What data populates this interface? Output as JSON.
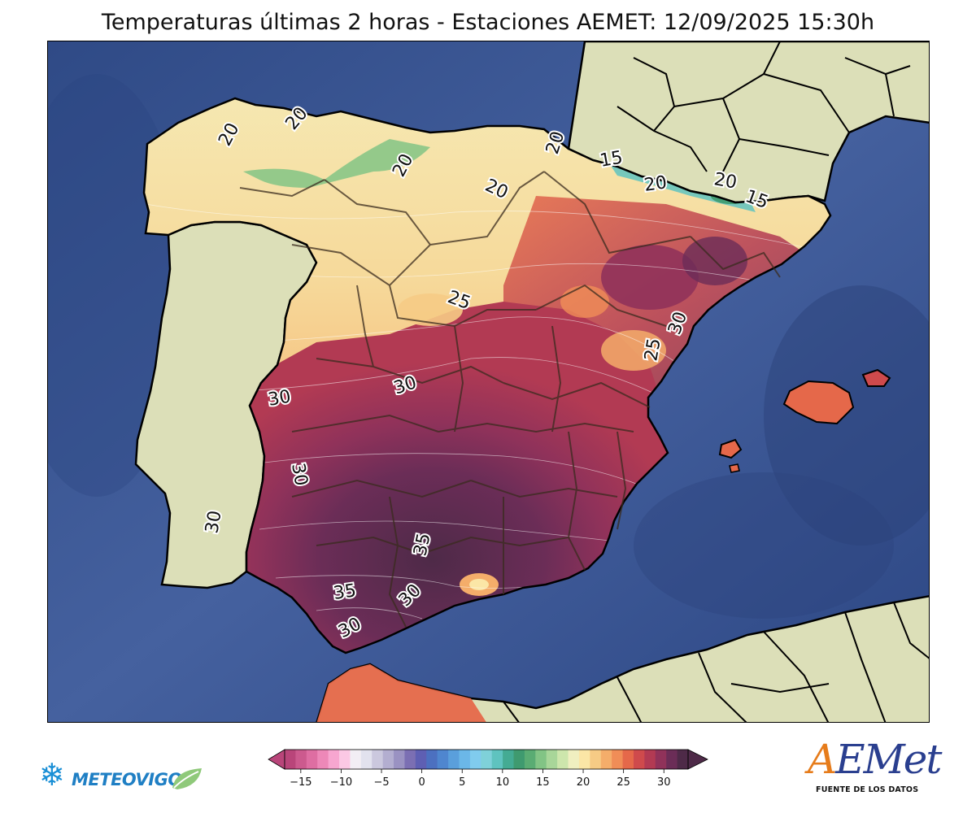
{
  "title": "Temperaturas últimas 2 horas - Estaciones AEMET: 12/09/2025 15:30h",
  "colors": {
    "sea": "#3f5a9a",
    "land_outside": "#dcdfb8",
    "portugal": "#dcdfb8",
    "border": "#000000"
  },
  "contour_labels": [
    {
      "text": "20",
      "id": "galicia-west"
    },
    {
      "text": "20",
      "id": "galicia-north"
    },
    {
      "text": "20",
      "id": "asturias"
    },
    {
      "text": "20",
      "id": "castilla-north"
    },
    {
      "text": "20",
      "id": "navarra"
    },
    {
      "text": "15",
      "id": "pyrenees-west"
    },
    {
      "text": "20",
      "id": "pyrenees-center"
    },
    {
      "text": "20",
      "id": "pyrenees-east-a"
    },
    {
      "text": "15",
      "id": "pyrenees-east-b"
    },
    {
      "text": "25",
      "id": "madrid-north"
    },
    {
      "text": "30",
      "id": "valencia-north"
    },
    {
      "text": "25",
      "id": "valencia"
    },
    {
      "text": "30",
      "id": "toledo"
    },
    {
      "text": "30",
      "id": "caceres"
    },
    {
      "text": "30",
      "id": "badajoz"
    },
    {
      "text": "30",
      "id": "portugal-south"
    },
    {
      "text": "35",
      "id": "cordoba"
    },
    {
      "text": "35",
      "id": "sevilla"
    },
    {
      "text": "30",
      "id": "malaga"
    },
    {
      "text": "30",
      "id": "cadiz"
    }
  ],
  "colorbar": {
    "ticks": [
      "−15",
      "−10",
      "−5",
      "0",
      "5",
      "10",
      "15",
      "20",
      "25",
      "30"
    ],
    "min": -17,
    "max": 33,
    "colors": [
      "#b9457a",
      "#cc5a8e",
      "#de6ea2",
      "#ed88b8",
      "#f7a6d0",
      "#fbc8e4",
      "#f2eef4",
      "#e2e2ee",
      "#cbc8de",
      "#b3aed0",
      "#9a92c2",
      "#7b6fb3",
      "#5e5fb3",
      "#4c70c0",
      "#4f86cf",
      "#5a9fdc",
      "#6bb7e8",
      "#80cbee",
      "#7fd1d9",
      "#5fc3bf",
      "#44ab93",
      "#3f9a6f",
      "#5aac73",
      "#82c485",
      "#a8d699",
      "#cde6ac",
      "#f0efc0",
      "#fbe6a6",
      "#f6cb85",
      "#f4ad6a",
      "#f08d57",
      "#e5684a",
      "#cf4a4c",
      "#b23a53",
      "#90325a",
      "#6b2d57",
      "#4e2a48"
    ]
  },
  "logos": {
    "left_brand": "METEOVIGO",
    "right_brand_initial": "A",
    "right_brand_rest": "EMet",
    "right_caption": "FUENTE DE LOS DATOS"
  }
}
